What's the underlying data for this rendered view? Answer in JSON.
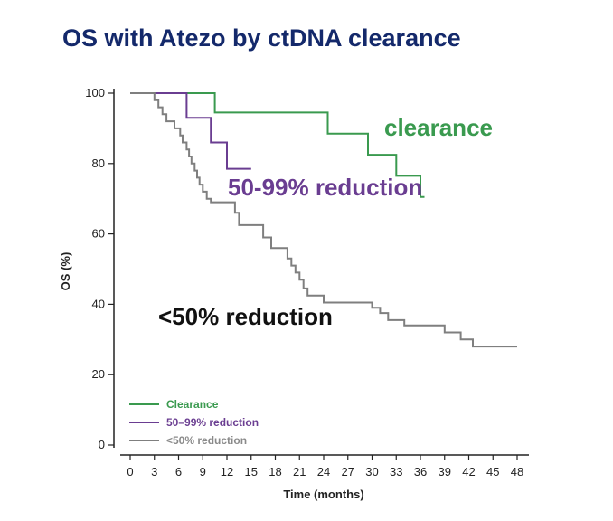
{
  "chart_data": {
    "type": "line",
    "subtype": "kaplan-meier step curve",
    "title": "OS with Atezo by ctDNA clearance",
    "xlabel": "Time (months)",
    "ylabel": "OS (%)",
    "xlim": [
      0,
      48
    ],
    "ylim": [
      0,
      100
    ],
    "x_ticks": [
      "0",
      "3",
      "6",
      "9",
      "12",
      "15",
      "18",
      "21",
      "24",
      "27",
      "30",
      "33",
      "36",
      "39",
      "42",
      "45",
      "48"
    ],
    "y_ticks": [
      "0",
      "20",
      "40",
      "60",
      "80",
      "100"
    ],
    "grid": false,
    "legend_position": "bottom-left",
    "series": [
      {
        "name": "Clearance",
        "color": "#3a9a4f",
        "points": [
          [
            0,
            100
          ],
          [
            10.5,
            100
          ],
          [
            10.5,
            94.5
          ],
          [
            24.5,
            94.5
          ],
          [
            24.5,
            88.5
          ],
          [
            29.5,
            88.5
          ],
          [
            29.5,
            82.5
          ],
          [
            33,
            82.5
          ],
          [
            33,
            76.5
          ],
          [
            36,
            76.5
          ],
          [
            36,
            70.5
          ],
          [
            36.5,
            70.5
          ]
        ]
      },
      {
        "name": "50–99% reduction",
        "color": "#6a3d91",
        "points": [
          [
            0,
            100
          ],
          [
            7,
            100
          ],
          [
            7,
            93
          ],
          [
            10,
            93
          ],
          [
            10,
            86
          ],
          [
            12,
            86
          ],
          [
            12,
            78.5
          ],
          [
            15,
            78.5
          ]
        ]
      },
      {
        "name": "<50% reduction",
        "color": "#7f7f7f",
        "points": [
          [
            0,
            100
          ],
          [
            3,
            100
          ],
          [
            3,
            98
          ],
          [
            3.5,
            98
          ],
          [
            3.5,
            96
          ],
          [
            4,
            96
          ],
          [
            4,
            94
          ],
          [
            4.5,
            94
          ],
          [
            4.5,
            92
          ],
          [
            5.5,
            92
          ],
          [
            5.5,
            90
          ],
          [
            6.2,
            90
          ],
          [
            6.2,
            88
          ],
          [
            6.5,
            88
          ],
          [
            6.5,
            86
          ],
          [
            7,
            86
          ],
          [
            7,
            84
          ],
          [
            7.3,
            84
          ],
          [
            7.3,
            82
          ],
          [
            7.6,
            82
          ],
          [
            7.6,
            80
          ],
          [
            8,
            80
          ],
          [
            8,
            78
          ],
          [
            8.3,
            78
          ],
          [
            8.3,
            76
          ],
          [
            8.6,
            76
          ],
          [
            8.6,
            74
          ],
          [
            9,
            74
          ],
          [
            9,
            72
          ],
          [
            9.5,
            72
          ],
          [
            9.5,
            70
          ],
          [
            10,
            70
          ],
          [
            10,
            69
          ],
          [
            13,
            69
          ],
          [
            13,
            66
          ],
          [
            13.5,
            66
          ],
          [
            13.5,
            62.5
          ],
          [
            16.5,
            62.5
          ],
          [
            16.5,
            59
          ],
          [
            17.5,
            59
          ],
          [
            17.5,
            56
          ],
          [
            19.5,
            56
          ],
          [
            19.5,
            53
          ],
          [
            20,
            53
          ],
          [
            20,
            51
          ],
          [
            20.5,
            51
          ],
          [
            20.5,
            49
          ],
          [
            21,
            49
          ],
          [
            21,
            47
          ],
          [
            21.5,
            47
          ],
          [
            21.5,
            44.5
          ],
          [
            22,
            44.5
          ],
          [
            22,
            42.5
          ],
          [
            24,
            42.5
          ],
          [
            24,
            40.5
          ],
          [
            30,
            40.5
          ],
          [
            30,
            39
          ],
          [
            31,
            39
          ],
          [
            31,
            37.5
          ],
          [
            32,
            37.5
          ],
          [
            32,
            35.5
          ],
          [
            34,
            35.5
          ],
          [
            34,
            34
          ],
          [
            39,
            34
          ],
          [
            39,
            32
          ],
          [
            41,
            32
          ],
          [
            41,
            30
          ],
          [
            42.5,
            30
          ],
          [
            42.5,
            28
          ],
          [
            48,
            28
          ]
        ]
      }
    ],
    "annotations": [
      {
        "text": "clearance",
        "color": "#3a9a4f"
      },
      {
        "text": "50-99% reduction",
        "color": "#6a3d91"
      },
      {
        "text": "<50% reduction",
        "color": "#111111"
      }
    ]
  },
  "colors": {
    "title": "#14296b",
    "axis": "#222222",
    "legend_text_gray": "#8a8a8a"
  }
}
